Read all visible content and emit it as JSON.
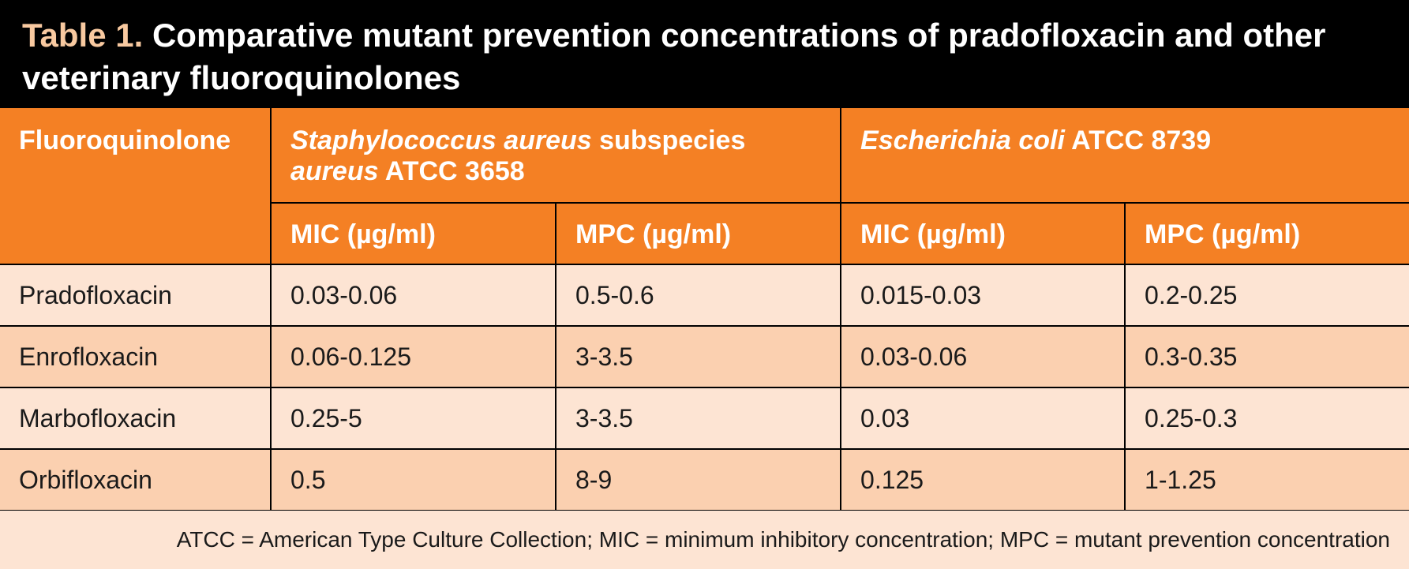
{
  "title": {
    "label": "Table 1.",
    "text": "Comparative mutant prevention concentrations of pradofloxacin and other veterinary fluoroquinolones"
  },
  "header": {
    "fluoroquinolone": "Fluoroquinolone",
    "staph": {
      "species_italic_1": "Staphylococcus aureus",
      "subspecies_word": "subspecies",
      "species_italic_2": "aureus",
      "strain": "ATCC 3658"
    },
    "ecoli": {
      "species_italic": "Escherichia coli",
      "strain": "ATCC 8739"
    },
    "mic": "MIC (µg/ml)",
    "mpc": "MPC (µg/ml)"
  },
  "rows": [
    {
      "drug": "Pradofloxacin",
      "sa_mic": "0.03-0.06",
      "sa_mpc": "0.5-0.6",
      "ec_mic": "0.015-0.03",
      "ec_mpc": "0.2-0.25"
    },
    {
      "drug": "Enrofloxacin",
      "sa_mic": "0.06-0.125",
      "sa_mpc": "3-3.5",
      "ec_mic": "0.03-0.06",
      "ec_mpc": "0.3-0.35"
    },
    {
      "drug": "Marbofloxacin",
      "sa_mic": "0.25-5",
      "sa_mpc": "3-3.5",
      "ec_mic": "0.03",
      "ec_mpc": "0.25-0.3"
    },
    {
      "drug": "Orbifloxacin",
      "sa_mic": "0.5",
      "sa_mpc": "8-9",
      "ec_mic": "0.125",
      "ec_mpc": "1-1.25"
    }
  ],
  "footnote": "ATCC = American Type Culture Collection; MIC = minimum inhibitory concentration; MPC = mutant prevention concentration",
  "colors": {
    "title_background": "#000000",
    "title_label": "#f8c9a0",
    "header_orange": "#f48024",
    "row_light": "#fde4d3",
    "row_dark": "#fbd0b0"
  }
}
